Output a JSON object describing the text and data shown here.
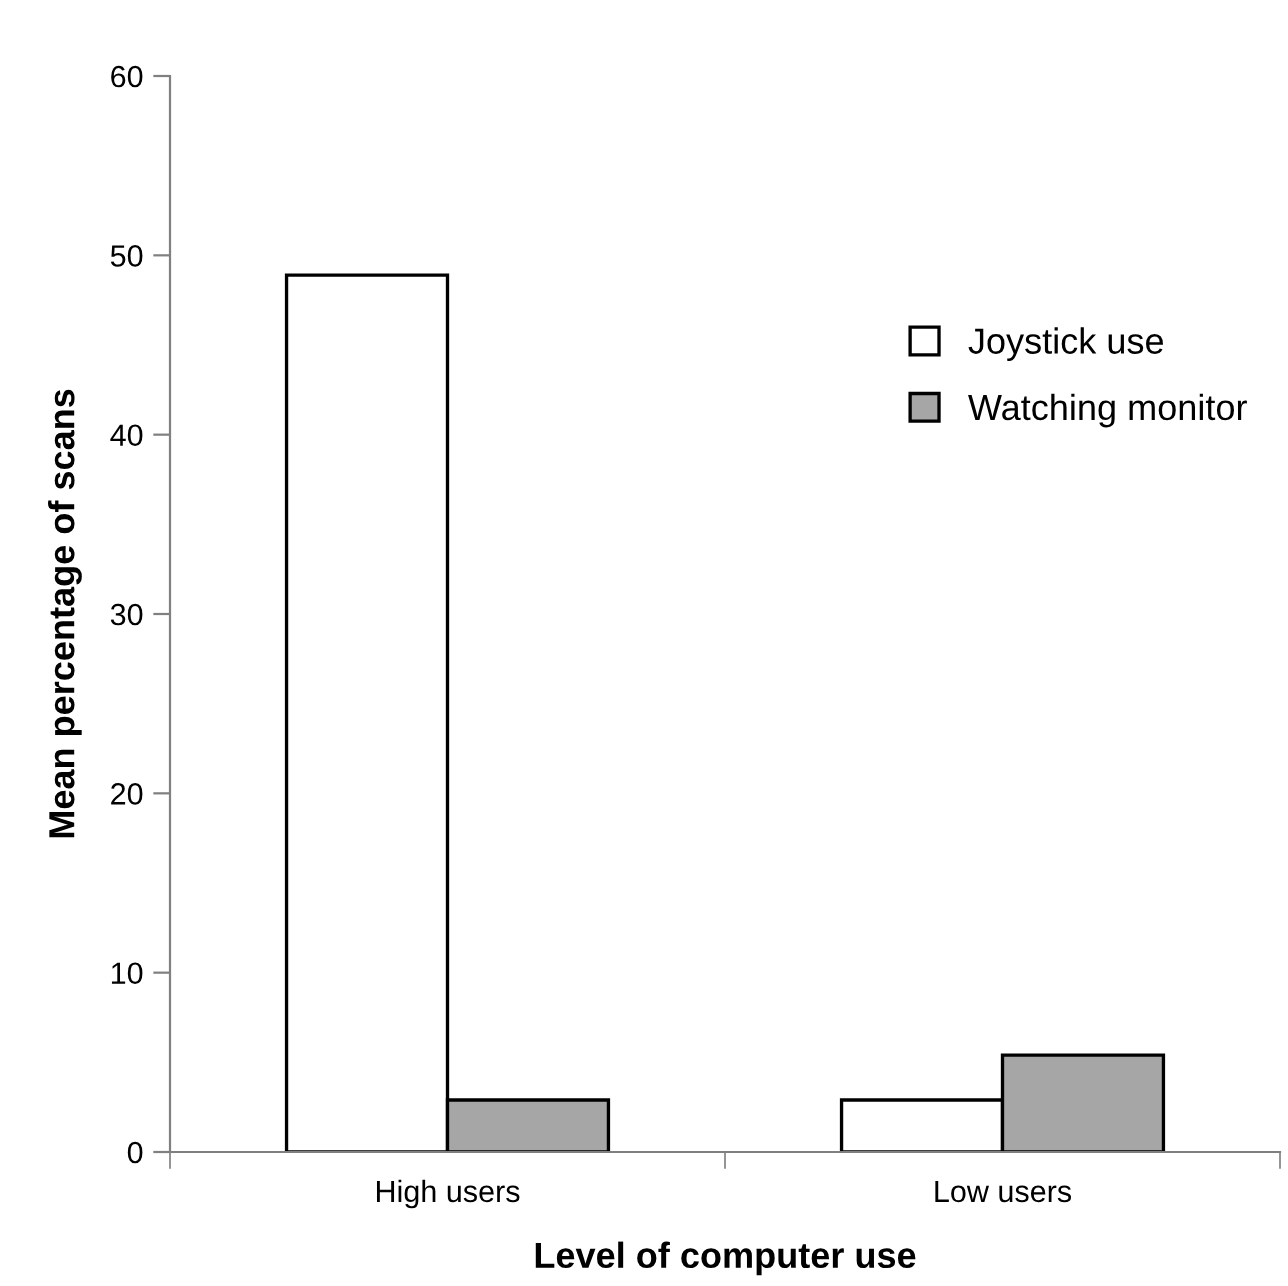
{
  "chart_data": {
    "type": "bar",
    "xlabel": "Level of computer use",
    "ylabel": "Mean percentage of scans",
    "categories": [
      "High users",
      "Low users"
    ],
    "series": [
      {
        "name": "Joystick use",
        "color": "#ffffff",
        "values": [
          48.9,
          2.9
        ]
      },
      {
        "name": "Watching monitor",
        "color": "#a6a6a6",
        "values": [
          2.9,
          5.4
        ]
      }
    ],
    "ylim": [
      0,
      60
    ],
    "yticks": [
      0,
      10,
      20,
      30,
      40,
      50,
      60
    ],
    "grid": false,
    "legend": "right"
  }
}
